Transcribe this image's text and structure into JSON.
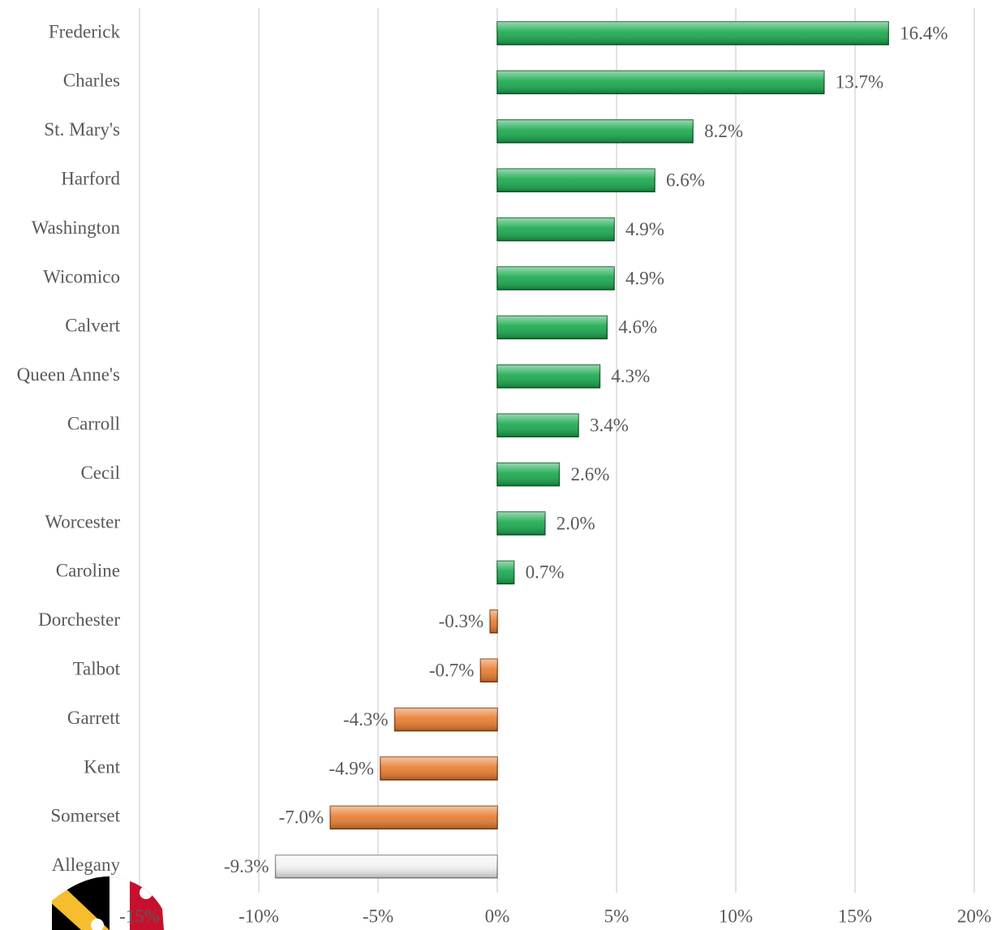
{
  "chart_data": {
    "type": "hbar",
    "categories": [
      "Frederick",
      "Charles",
      "St. Mary's",
      "Harford",
      "Washington",
      "Wicomico",
      "Calvert",
      "Queen Anne's",
      "Carroll",
      "Cecil",
      "Worcester",
      "Caroline",
      "Dorchester",
      "Talbot",
      "Garrett",
      "Kent",
      "Somerset",
      "Allegany"
    ],
    "values": [
      16.4,
      13.7,
      8.2,
      6.6,
      4.9,
      4.9,
      4.6,
      4.3,
      3.4,
      2.6,
      2.0,
      0.7,
      -0.3,
      -0.7,
      -4.3,
      -4.9,
      -7.0,
      -9.3
    ],
    "value_labels": [
      "16.4%",
      "13.7%",
      "8.2%",
      "6.6%",
      "4.9%",
      "4.9%",
      "4.6%",
      "4.3%",
      "3.4%",
      "2.6%",
      "2.0%",
      "0.7%",
      "-0.3%",
      "-0.7%",
      "-4.3%",
      "-4.9%",
      "-7.0%",
      "-9.3%"
    ],
    "colors": [
      "#17a84c",
      "#17a84c",
      "#17a84c",
      "#17a84c",
      "#17a84c",
      "#17a84c",
      "#17a84c",
      "#17a84c",
      "#17a84c",
      "#17a84c",
      "#17a84c",
      "#17a84c",
      "#e87b2e",
      "#e87b2e",
      "#e87b2e",
      "#e87b2e",
      "#e87b2e",
      "#f2f2f2"
    ],
    "xlim": [
      -15,
      20
    ],
    "xticks": [
      {
        "value": -15,
        "label": "-15%"
      },
      {
        "value": -10,
        "label": "-10%"
      },
      {
        "value": -5,
        "label": "-5%"
      },
      {
        "value": 0,
        "label": "0%"
      },
      {
        "value": 5,
        "label": "5%"
      },
      {
        "value": 10,
        "label": "10%"
      },
      {
        "value": 15,
        "label": "15%"
      },
      {
        "value": 20,
        "label": "20%"
      }
    ],
    "grid": true
  }
}
